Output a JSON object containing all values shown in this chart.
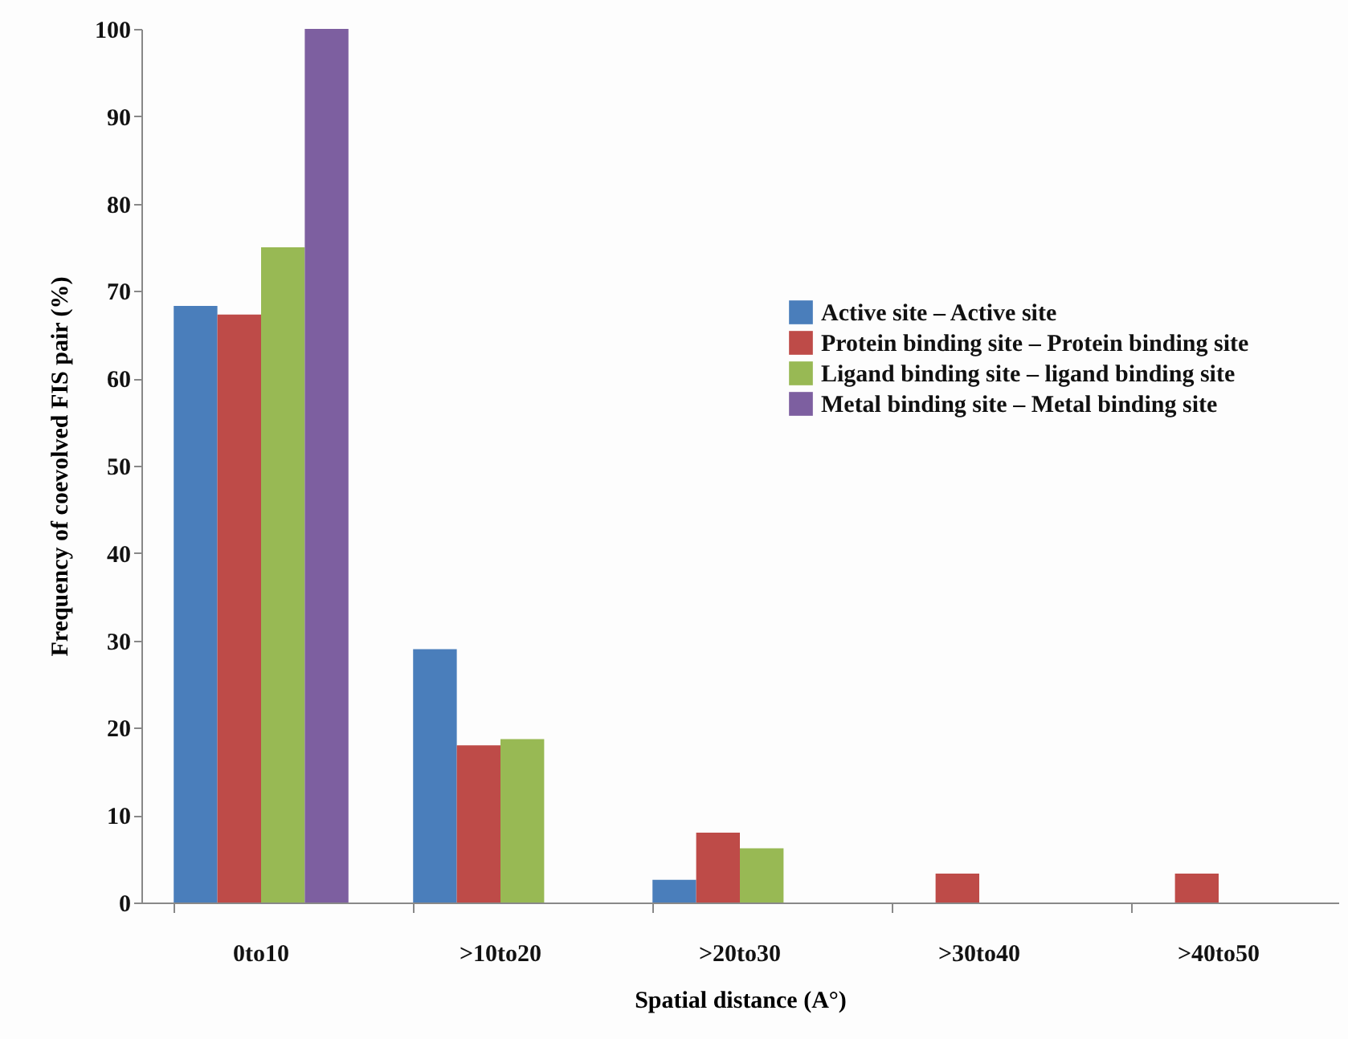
{
  "chart_data": {
    "type": "bar",
    "xlabel": "Spatial distance (A°)",
    "ylabel": "Frequency of coevolved FIS pair (%)",
    "categories": [
      "0to10",
      ">10to20",
      ">20to30",
      ">30to40",
      ">40to50"
    ],
    "series": [
      {
        "name": "Active site – Active site",
        "color": "#4a7ebb",
        "values": [
          68.3,
          29,
          2.6,
          0,
          0
        ]
      },
      {
        "name": "Protein binding site – Protein binding site",
        "color": "#be4b48",
        "values": [
          67.3,
          18,
          8,
          3.3,
          3.3
        ]
      },
      {
        "name": "Ligand binding site – ligand binding site",
        "color": "#98b954",
        "values": [
          75,
          18.7,
          6.2,
          0,
          0
        ]
      },
      {
        "name": "Metal binding site – Metal binding site",
        "color": "#7d5fa0",
        "values": [
          100,
          0,
          0,
          0,
          0
        ]
      }
    ],
    "ylim": [
      0,
      100
    ],
    "yticks": [
      0,
      10,
      20,
      30,
      40,
      50,
      60,
      70,
      80,
      90,
      100
    ],
    "grid": false,
    "legend": "right"
  }
}
